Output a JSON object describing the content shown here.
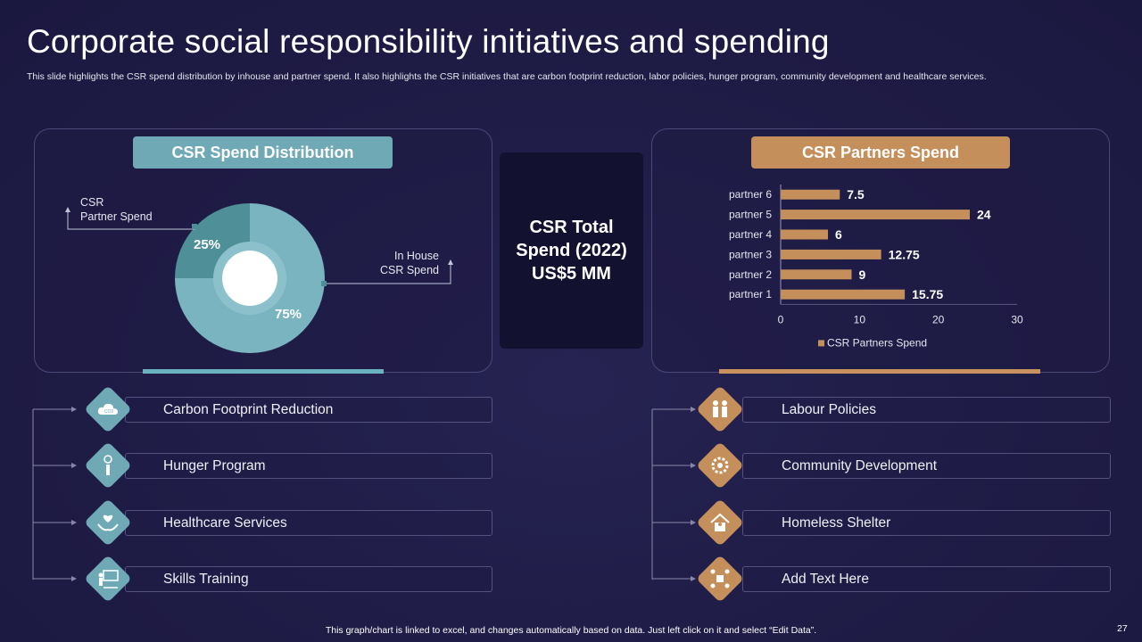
{
  "slide": {
    "title": "Corporate social responsibility initiatives and spending",
    "subtitle": "This slide highlights the CSR spend distribution by inhouse and partner spend. It also highlights the CSR initiatives that are carbon footprint reduction, labor policies, hunger program, community development and healthcare services.",
    "footer": "This graph/chart is linked to excel, and changes automatically based on data. Just left click on it and select “Edit Data”.",
    "page_number": "27"
  },
  "left_panel": {
    "header": "CSR Spend Distribution",
    "label_partner": "CSR\nPartner Spend",
    "label_partner_line1": "CSR",
    "label_partner_line2": "Partner Spend",
    "label_inhouse_line1": "In House",
    "label_inhouse_line2": "CSR Spend",
    "pct_partner": "25%",
    "pct_inhouse": "75%"
  },
  "center": {
    "line1": "CSR Total",
    "line2": "Spend (2022)",
    "line3": "US$5 MM"
  },
  "right_panel": {
    "header": "CSR Partners Spend"
  },
  "initiatives_left": [
    {
      "label": "Carbon Footprint Reduction",
      "icon": "co2-cloud-icon"
    },
    {
      "label": "Hunger Program",
      "icon": "hunger-icon"
    },
    {
      "label": "Healthcare Services",
      "icon": "healthcare-hands-icon"
    },
    {
      "label": "Skills Training",
      "icon": "training-board-icon"
    }
  ],
  "initiatives_right": [
    {
      "label": "Labour Policies",
      "icon": "workers-icon"
    },
    {
      "label": "Community Development",
      "icon": "community-gear-icon"
    },
    {
      "label": "Homeless Shelter",
      "icon": "shelter-house-icon"
    },
    {
      "label": "Add Text Here",
      "icon": "network-icon"
    }
  ],
  "colors": {
    "background": "#1e1b45",
    "teal": "#6fa9b6",
    "tan": "#c48f5a",
    "donut_dark": "#4f8f98",
    "donut_light": "#79b4c0"
  },
  "chart_data": [
    {
      "type": "pie",
      "categories": [
        "CSR Partner Spend",
        "In House CSR Spend"
      ],
      "values": [
        25,
        75
      ],
      "data_labels": [
        "25%",
        "75%"
      ]
    },
    {
      "type": "bar",
      "orientation": "horizontal",
      "categories": [
        "partner 1",
        "partner 2",
        "partner 3",
        "partner 4",
        "partner 5",
        "partner 6"
      ],
      "series": [
        {
          "name": "CSR Partners Spend",
          "values": [
            15.75,
            9,
            12.75,
            6,
            24,
            7.5
          ]
        }
      ],
      "data_labels": [
        "15.75",
        "9",
        "12.75",
        "6",
        "24",
        "7.5"
      ],
      "xlim": [
        0,
        30
      ],
      "xticks": [
        "0",
        "10",
        "20",
        "30"
      ],
      "legend": "bottom",
      "grid": false
    }
  ]
}
